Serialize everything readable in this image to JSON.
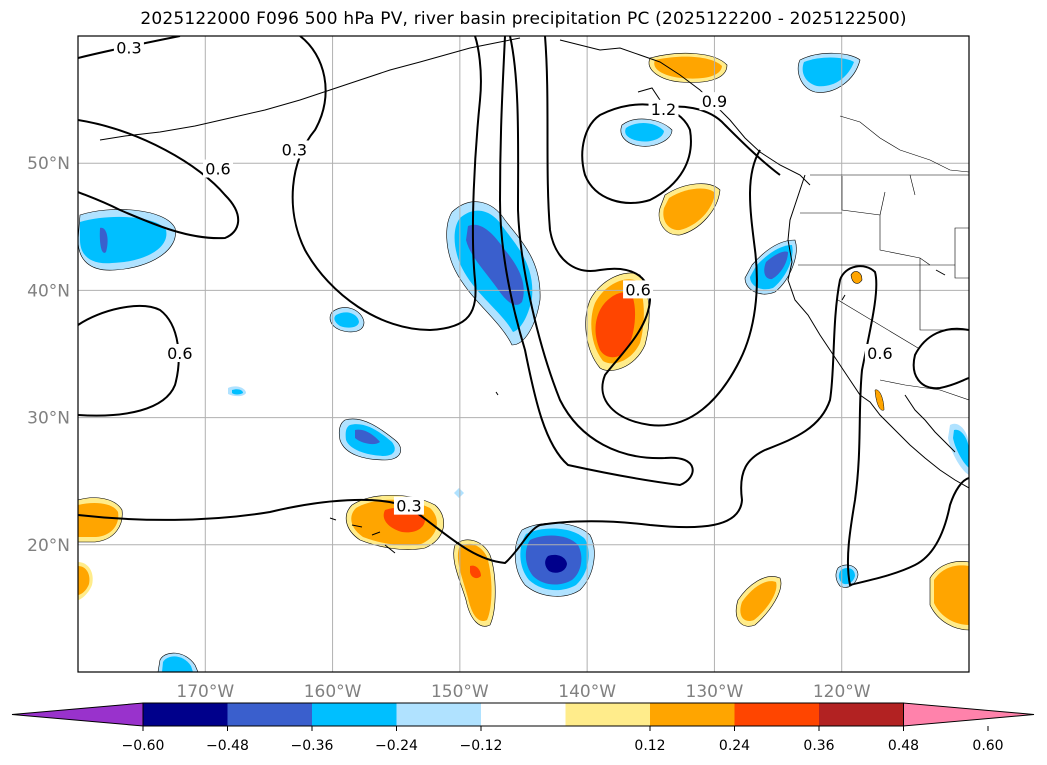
{
  "title": "2025122000 F096 500 hPa PV, river basin precipitation PC (2025122200 - 2025122500)",
  "map": {
    "lon_range": [
      -180,
      -110
    ],
    "lat_range": [
      10,
      60
    ],
    "lon_gridlines": [
      -170,
      -160,
      -150,
      -140,
      -130,
      -120
    ],
    "lat_gridlines": [
      20,
      30,
      40,
      50
    ],
    "lon_tick_labels": [
      "170°W",
      "160°W",
      "150°W",
      "140°W",
      "130°W",
      "120°W"
    ],
    "lat_tick_labels": [
      "20°N",
      "30°N",
      "40°N",
      "50°N"
    ],
    "tick_label_color": "#808080"
  },
  "pv_contour_labels": [
    {
      "text": "0.3",
      "lon": -176,
      "lat": 59.0
    },
    {
      "text": "0.6",
      "lon": -169,
      "lat": 49.5
    },
    {
      "text": "0.3",
      "lon": -163,
      "lat": 51.0
    },
    {
      "text": "1.2",
      "lon": -134,
      "lat": 54.2
    },
    {
      "text": "0.9",
      "lon": -130,
      "lat": 54.8
    },
    {
      "text": "0.6",
      "lon": -136,
      "lat": 40.0
    },
    {
      "text": "0.6",
      "lon": -172,
      "lat": 35.0
    },
    {
      "text": "0.3",
      "lon": -154,
      "lat": 23.0
    },
    {
      "text": "0.6",
      "lon": -117,
      "lat": 35.0
    }
  ],
  "colorbar": {
    "tick_labels": [
      "−0.60",
      "−0.48",
      "−0.36",
      "−0.24",
      "−0.12",
      "0.12",
      "0.24",
      "0.36",
      "0.48",
      "0.60"
    ],
    "colors": [
      "#9932cc",
      "#00008b",
      "#3a5fcd",
      "#00bfff",
      "#b0e2ff",
      "#ffffff",
      "#ffec8b",
      "#ffa500",
      "#ff4500",
      "#b22222",
      "#ff82ab"
    ]
  }
}
